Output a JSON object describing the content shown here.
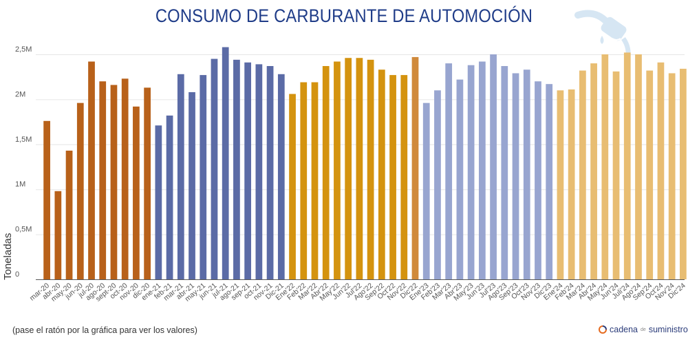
{
  "title": "CONSUMO DE CARBURANTE DE AUTOMOCIÓN",
  "footnote": "(pase el ratón por la gráfica para ver los valores)",
  "brand": {
    "name_a": "cadena",
    "name_small": "de",
    "name_b": "suministro",
    "icon": "circular-arrow-logo-icon"
  },
  "decor_icon": "fuel-pump-nozzle-icon",
  "chart_data": {
    "type": "bar",
    "title": "CONSUMO DE CARBURANTE DE AUTOMOCIÓN",
    "xlabel": "",
    "ylabel": "Toneladas",
    "ylim": [
      0,
      2500000
    ],
    "yticks": [
      0,
      500000,
      1000000,
      1500000,
      2000000,
      2500000
    ],
    "ytick_labels": [
      "0",
      "0,5M",
      "1M",
      "1,5M",
      "2M",
      "2,5M"
    ],
    "grid": true,
    "legend": "none",
    "group_colors": {
      "2020": "#b8611a",
      "2021": "#5b6ba6",
      "2022": "#d4930f",
      "2022-dic": "#d08a3c",
      "2023": "#98a5d0",
      "2024": "#e8bd72"
    },
    "categories": [
      "mar-20",
      "abr-20",
      "may-20",
      "jun-20",
      "jul-20",
      "ago-20",
      "sept-20",
      "oct-20",
      "nov-20",
      "dic-20",
      "ene-21",
      "feb-21",
      "mar-21",
      "abr-21",
      "may-21",
      "jun-21",
      "jul-21",
      "ago-21",
      "sep-21",
      "oct-21",
      "nov-21",
      "Dic-21",
      "Ene'22",
      "Feb'22",
      "Mar'22",
      "Abr'22",
      "May'22",
      "Jun'22",
      "Jul'22",
      "Ago'22",
      "Sep'22",
      "Oct'22",
      "Nov'22",
      "Dic'22",
      "Ene'23",
      "Feb'23",
      "Mar'23",
      "Abr'23",
      "May'23",
      "Jun'23",
      "Jul'23",
      "Ago'23",
      "Sep'23",
      "Oct'23",
      "Nov'23",
      "Dic'23",
      "Ene'24",
      "Feb'24",
      "Mar'24",
      "Abr'24",
      "May'24",
      "Jun'24",
      "Juli'24",
      "Ago'24",
      "Sep'24",
      "Oct'24",
      "Nov'24",
      "Dic'24"
    ],
    "groups": [
      "2020",
      "2020",
      "2020",
      "2020",
      "2020",
      "2020",
      "2020",
      "2020",
      "2020",
      "2020",
      "2021",
      "2021",
      "2021",
      "2021",
      "2021",
      "2021",
      "2021",
      "2021",
      "2021",
      "2021",
      "2021",
      "2021",
      "2022",
      "2022",
      "2022",
      "2022",
      "2022",
      "2022",
      "2022",
      "2022",
      "2022",
      "2022",
      "2022",
      "2022-dic",
      "2023",
      "2023",
      "2023",
      "2023",
      "2023",
      "2023",
      "2023",
      "2023",
      "2023",
      "2023",
      "2023",
      "2023",
      "2024",
      "2024",
      "2024",
      "2024",
      "2024",
      "2024",
      "2024",
      "2024",
      "2024",
      "2024",
      "2024",
      "2024"
    ],
    "values": [
      1760000,
      980000,
      1430000,
      1960000,
      2420000,
      2200000,
      2160000,
      2230000,
      1920000,
      2130000,
      1710000,
      1820000,
      2280000,
      2080000,
      2270000,
      2450000,
      2580000,
      2440000,
      2410000,
      2390000,
      2370000,
      2280000,
      2060000,
      2190000,
      2190000,
      2370000,
      2420000,
      2460000,
      2460000,
      2440000,
      2330000,
      2270000,
      2270000,
      2470000,
      1960000,
      2100000,
      2400000,
      2220000,
      2380000,
      2420000,
      2500000,
      2370000,
      2290000,
      2330000,
      2200000,
      2170000,
      2100000,
      2110000,
      2320000,
      2400000,
      2500000,
      2310000,
      2520000,
      2500000,
      2320000,
      2410000,
      2290000,
      2340000
    ]
  }
}
